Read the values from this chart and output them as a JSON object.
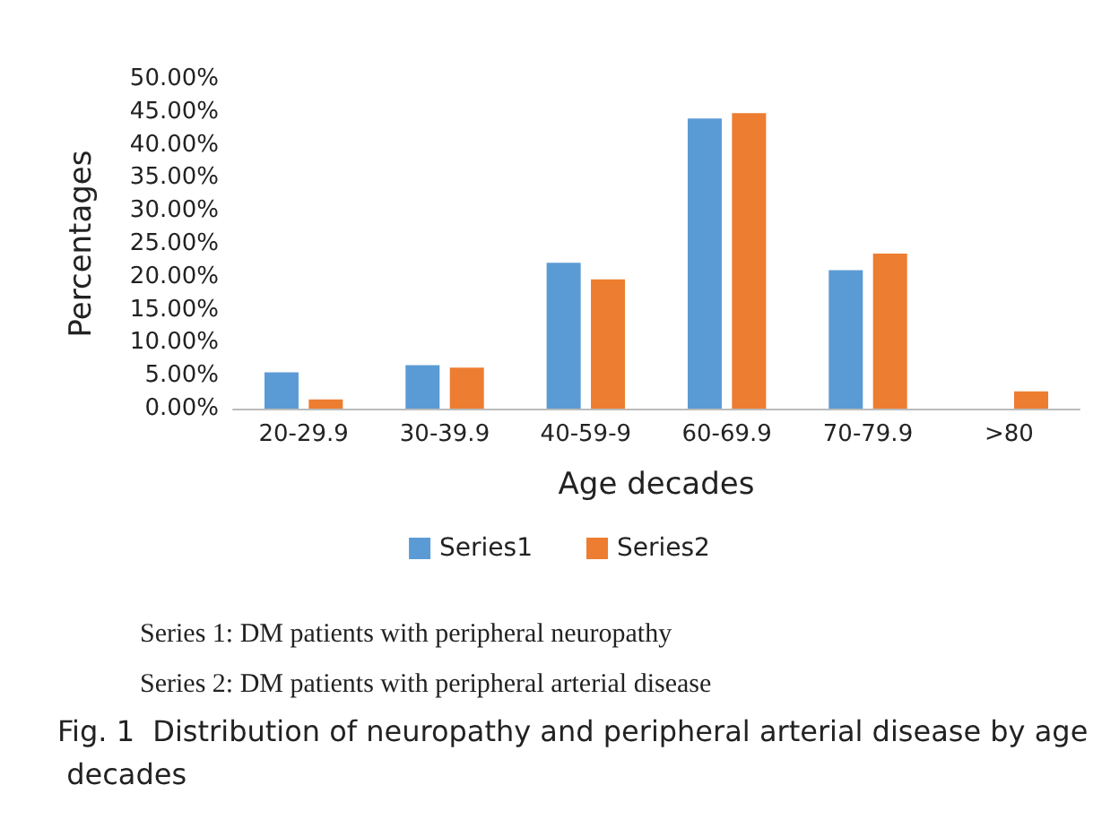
{
  "chart_data": {
    "type": "bar",
    "xlabel": "Age decades",
    "ylabel": "Percentages",
    "categories": [
      "20-29.9",
      "30-39.9",
      "40-59-9",
      "60-69.9",
      "70-79.9",
      ">80"
    ],
    "series": [
      {
        "name": "Series1",
        "color": "#5b9bd5",
        "values": [
          5.5,
          6.6,
          22.1,
          44.0,
          21.0,
          0
        ]
      },
      {
        "name": "Series2",
        "color": "#ed7d31",
        "values": [
          1.4,
          6.2,
          19.6,
          44.8,
          23.5,
          2.6
        ]
      }
    ],
    "ylim": [
      0,
      50
    ],
    "yticks": [
      {
        "value": 0,
        "label": "0.00%"
      },
      {
        "value": 5,
        "label": "5.00%"
      },
      {
        "value": 10,
        "label": "10.00%"
      },
      {
        "value": 15,
        "label": "15.00%"
      },
      {
        "value": 20,
        "label": "20.00%"
      },
      {
        "value": 25,
        "label": "25.00%"
      },
      {
        "value": 30,
        "label": "30.00%"
      },
      {
        "value": 35,
        "label": "35.00%"
      },
      {
        "value": 40,
        "label": "40.00%"
      },
      {
        "value": 45,
        "label": "45.00%"
      },
      {
        "value": 50,
        "label": "50.00%"
      }
    ],
    "grid": false,
    "legend": "bottom",
    "annotations": [
      "Series 1: DM patients with peripheral neuropathy",
      "Series 2: DM patients with peripheral arterial disease",
      "Fig. 1  Distribution of neuropathy and peripheral arterial disease by age decades"
    ]
  }
}
